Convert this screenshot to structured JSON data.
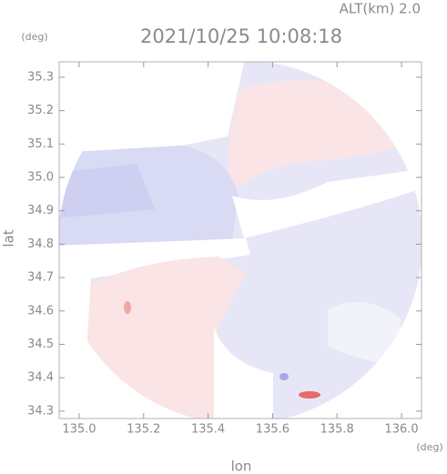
{
  "chart_data": {
    "type": "map",
    "title": "2021/10/25 10:08:18",
    "subtitle": "ALT(km) 2.0",
    "x_label": "lon",
    "y_label": "lat",
    "x_unit": "(deg)",
    "y_unit": "(deg)",
    "xlim": [
      134.938,
      136.062
    ],
    "ylim": [
      34.278,
      35.346
    ],
    "xticks": [
      {
        "value": 135,
        "label": "135.0"
      },
      135.2,
      135.4,
      135.6,
      135.8,
      {
        "value": 136,
        "label": "136.0"
      }
    ],
    "yticks": [
      34.3,
      34.4,
      34.5,
      34.6,
      34.7,
      34.8,
      34.9,
      {
        "value": 35,
        "label": "35.0"
      },
      35.1,
      35.2,
      35.3
    ]
  }
}
